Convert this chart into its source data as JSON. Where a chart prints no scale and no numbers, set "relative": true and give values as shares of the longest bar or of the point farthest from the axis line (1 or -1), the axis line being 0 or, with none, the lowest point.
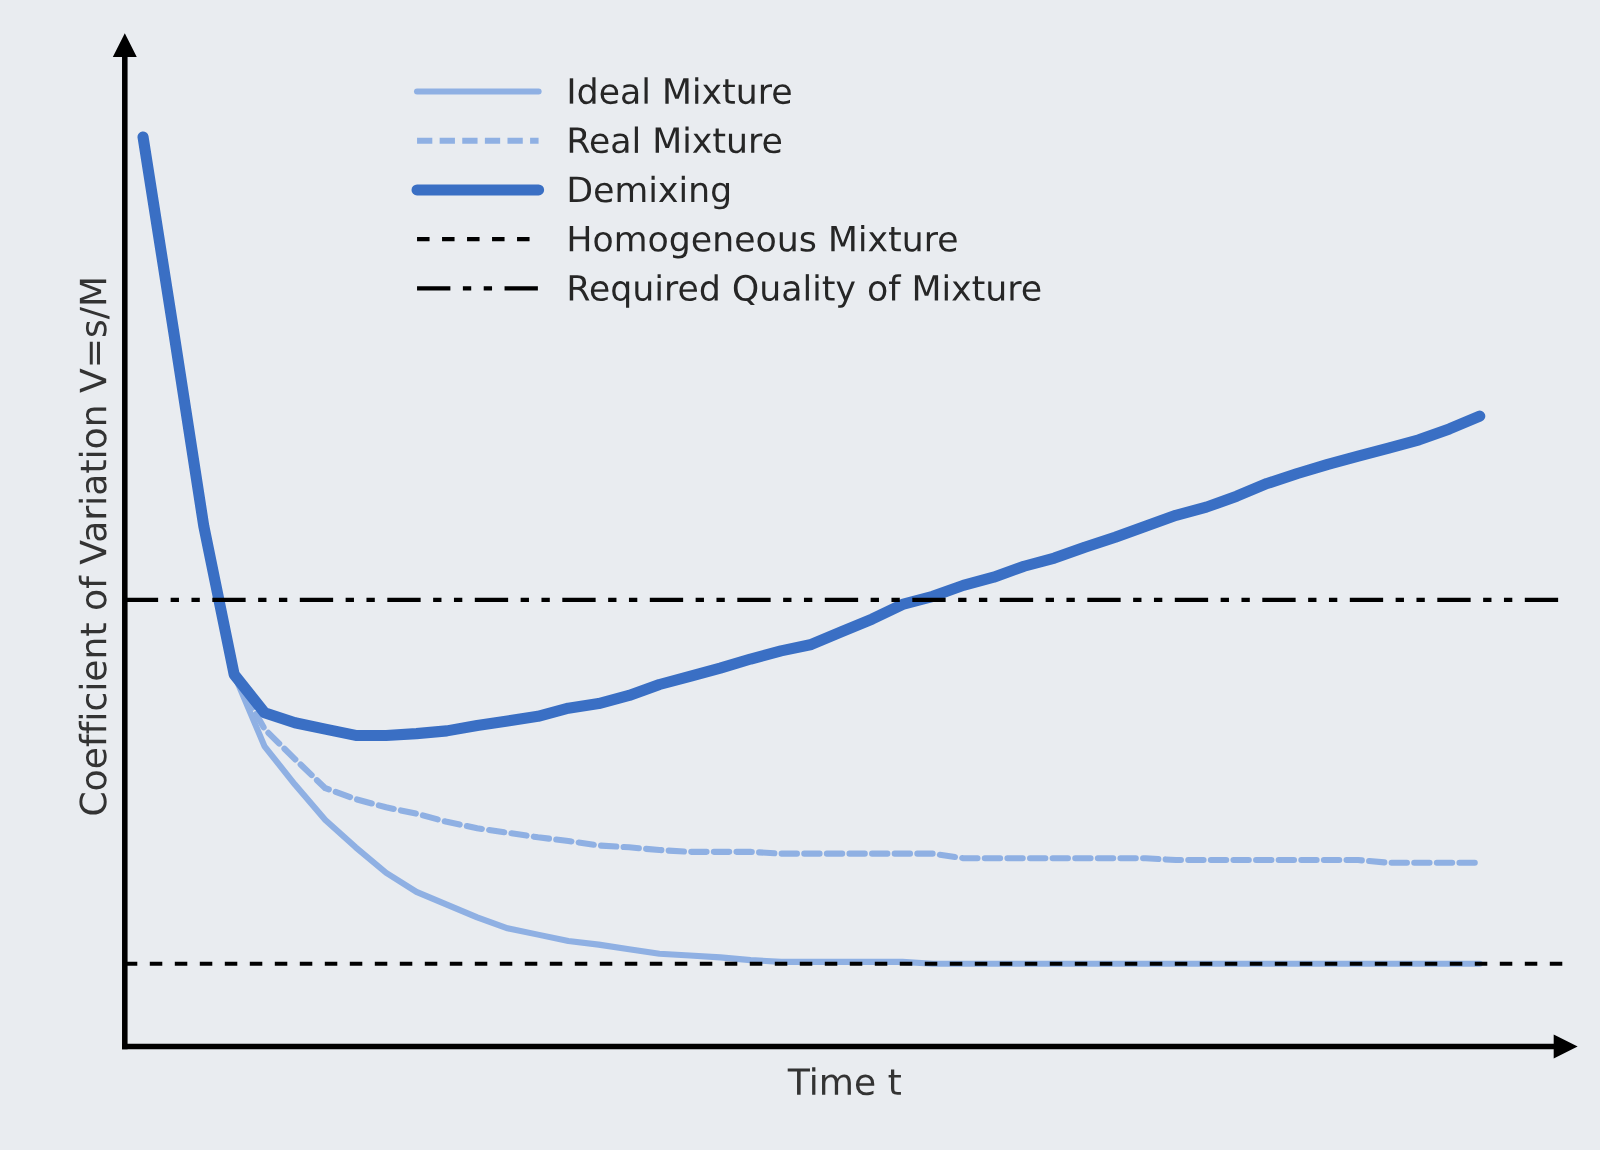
{
  "chart_data": {
    "type": "line",
    "relative": true,
    "xlabel": "Time t",
    "ylabel": "Coefficient of Variation V=s/M",
    "legend": "top",
    "grid": false,
    "categories": [
      null,
      null,
      null,
      null,
      null,
      null,
      null,
      null,
      null,
      null,
      null,
      null,
      null,
      null,
      null,
      null,
      null,
      null,
      null,
      null,
      null,
      null,
      null,
      null,
      null,
      null,
      null,
      null,
      null,
      null,
      null,
      null,
      null,
      null,
      null,
      null,
      null,
      null,
      null,
      null,
      null,
      null,
      null,
      null,
      null
    ],
    "series": [
      {
        "name": "Ideal Mixture",
        "color": "#8fb0e3",
        "line_style": "solid",
        "values": [
          null,
          null,
          null,
          0.409,
          0.33,
          0.288,
          0.249,
          0.219,
          0.191,
          0.17,
          0.156,
          0.142,
          0.13,
          0.123,
          0.116,
          0.112,
          0.107,
          0.102,
          0.1,
          0.098,
          0.095,
          0.093,
          0.093,
          0.093,
          0.093,
          0.093,
          0.091,
          0.091,
          0.091,
          0.091,
          0.091,
          0.091,
          0.091,
          0.091,
          0.091,
          0.091,
          0.091,
          0.091,
          0.091,
          0.091,
          0.091,
          0.091,
          0.091,
          0.091,
          0.091
        ]
      },
      {
        "name": "Real Mixture",
        "color": "#8fb0e3",
        "line_style": "dashed",
        "values": [
          null,
          null,
          null,
          0.409,
          0.349,
          0.316,
          0.284,
          0.272,
          0.263,
          0.256,
          0.247,
          0.24,
          0.235,
          0.23,
          0.226,
          0.221,
          0.219,
          0.216,
          0.214,
          0.214,
          0.214,
          0.212,
          0.212,
          0.212,
          0.212,
          0.212,
          0.212,
          0.207,
          0.207,
          0.207,
          0.207,
          0.207,
          0.207,
          0.207,
          0.205,
          0.205,
          0.205,
          0.205,
          0.205,
          0.205,
          0.205,
          0.202,
          0.202,
          0.202,
          0.202
        ]
      },
      {
        "name": "Demixing",
        "color": "#3a6fc4",
        "line_style": "solid",
        "values": [
          1.0,
          0.788,
          0.572,
          0.409,
          0.367,
          0.356,
          0.349,
          0.342,
          0.342,
          0.344,
          0.347,
          0.353,
          0.358,
          0.363,
          0.372,
          0.377,
          0.386,
          0.398,
          0.407,
          0.416,
          0.426,
          0.435,
          0.442,
          0.456,
          0.47,
          0.486,
          0.495,
          0.507,
          0.516,
          0.528,
          0.537,
          0.549,
          0.56,
          0.572,
          0.584,
          0.593,
          0.605,
          0.619,
          0.63,
          0.64,
          0.649,
          0.658,
          0.667,
          0.679,
          0.693
        ]
      }
    ],
    "ref_lines": [
      {
        "axis": "y",
        "value": 0.091,
        "label": "Homogeneous Mixture",
        "color": "#000000",
        "line_style": "dotted"
      },
      {
        "axis": "y",
        "value": 0.491,
        "label": "Required Quality of Mixture",
        "color": "#000000",
        "line_style": "dashdot"
      }
    ]
  }
}
